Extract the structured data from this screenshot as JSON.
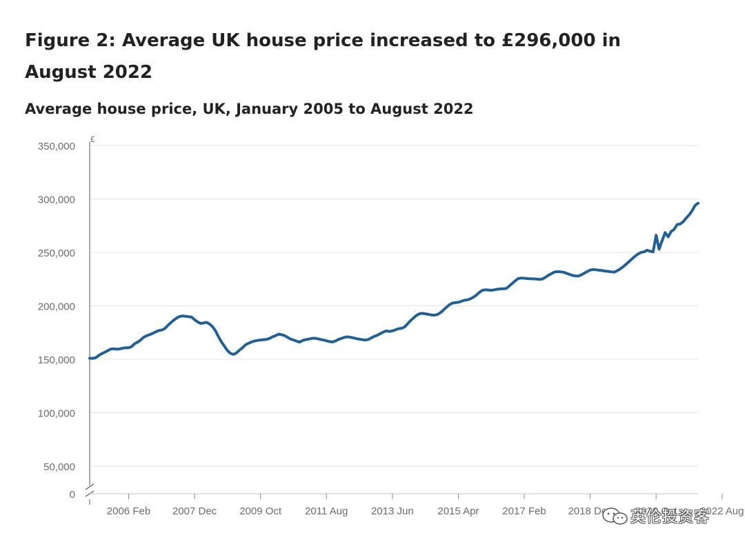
{
  "figure_title": "Figure 2: Average UK house price increased to £296,000 in August 2022",
  "chart_data": {
    "type": "line",
    "title": "Average house price, UK, January 2005 to August 2022",
    "ylabel": "£",
    "xlabel": "",
    "ylim": [
      0,
      350000
    ],
    "y_ticks": [
      {
        "value": 0,
        "label": "0"
      },
      {
        "value": 50000,
        "label": "50,000"
      },
      {
        "value": 100000,
        "label": "100,000"
      },
      {
        "value": 150000,
        "label": "150,000"
      },
      {
        "value": 200000,
        "label": "200,000"
      },
      {
        "value": 250000,
        "label": "250,000"
      },
      {
        "value": 300000,
        "label": "300,000"
      },
      {
        "value": 350000,
        "label": "350,000"
      }
    ],
    "x_ticks": [
      {
        "index": 13,
        "label": "2006 Feb"
      },
      {
        "index": 35,
        "label": "2007 Dec"
      },
      {
        "index": 57,
        "label": "2009 Oct"
      },
      {
        "index": 79,
        "label": "2011 Aug"
      },
      {
        "index": 101,
        "label": "2013 Jun"
      },
      {
        "index": 123,
        "label": "2015 Apr"
      },
      {
        "index": 145,
        "label": "2017 Feb"
      },
      {
        "index": 167,
        "label": "2018 Dec"
      },
      {
        "index": 189,
        "label": "2020 Oct"
      },
      {
        "index": 211,
        "label": "2022 Aug"
      }
    ],
    "grid": true,
    "axis_break": true,
    "line_color": "#206095",
    "series": [
      {
        "name": "Average house price",
        "start": "2005 Jan",
        "frequency": "monthly",
        "values": [
          151000,
          150800,
          151500,
          153500,
          155200,
          156500,
          158000,
          159500,
          159800,
          159400,
          159600,
          160300,
          160800,
          160700,
          161800,
          164500,
          166000,
          168000,
          170500,
          172000,
          173000,
          174200,
          175600,
          176800,
          177300,
          178500,
          181500,
          184000,
          186500,
          188500,
          190000,
          190500,
          190200,
          189800,
          189500,
          187000,
          185000,
          183500,
          184000,
          184500,
          183000,
          180500,
          176500,
          171000,
          166000,
          162000,
          158000,
          155500,
          154500,
          156000,
          158500,
          160800,
          163500,
          165000,
          166200,
          167000,
          167600,
          168000,
          168300,
          168500,
          169500,
          171000,
          172000,
          173500,
          173000,
          172200,
          170500,
          169000,
          168000,
          167000,
          166000,
          167500,
          168300,
          168800,
          169500,
          169700,
          169200,
          168500,
          168000,
          167300,
          166500,
          166200,
          167000,
          168500,
          169500,
          170500,
          171000,
          170500,
          170000,
          169300,
          168800,
          168300,
          168000,
          168500,
          170000,
          171500,
          172500,
          174000,
          175500,
          176500,
          176000,
          176500,
          177500,
          178500,
          179000,
          180000,
          183000,
          186000,
          188500,
          191000,
          192500,
          193000,
          192500,
          192000,
          191500,
          191200,
          191800,
          193500,
          196000,
          198500,
          201000,
          202500,
          203000,
          203300,
          204200,
          205200,
          205500,
          206500,
          208000,
          210000,
          212500,
          214500,
          215000,
          214800,
          214500,
          215000,
          215500,
          215800,
          216000,
          216200,
          218500,
          221000,
          223500,
          225500,
          226000,
          225800,
          225500,
          225300,
          225200,
          225000,
          224800,
          225000,
          226500,
          228500,
          230000,
          231500,
          232000,
          231800,
          231500,
          230500,
          229500,
          228500,
          228000,
          227800,
          229000,
          230500,
          232000,
          233500,
          234000,
          233700,
          233300,
          233000,
          232500,
          232200,
          231800,
          231500,
          232800,
          234500,
          236500,
          239000,
          241500,
          244000,
          246500,
          248500,
          250000,
          250500,
          252000,
          251000,
          250500,
          266000,
          253000,
          261000,
          268500,
          264500,
          269500,
          271500,
          276000,
          276500,
          278500,
          282000,
          285000,
          289000,
          294000,
          296000
        ]
      }
    ]
  },
  "watermark": {
    "text": "英伦投资客",
    "icon": "wechat-icon"
  }
}
